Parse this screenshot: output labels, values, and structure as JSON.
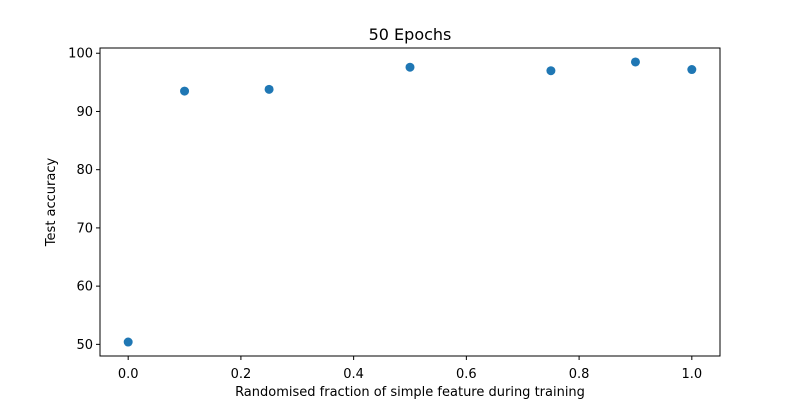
{
  "chart_data": {
    "type": "scatter",
    "title": "50 Epochs",
    "xlabel": "Randomised fraction of simple feature during training",
    "ylabel": "Test accuracy",
    "xlim": [
      -0.05,
      1.05
    ],
    "ylim": [
      48.0,
      100.9
    ],
    "xticks": [
      0.0,
      0.2,
      0.4,
      0.6,
      0.8,
      1.0
    ],
    "xtick_labels": [
      "0.0",
      "0.2",
      "0.4",
      "0.6",
      "0.8",
      "1.0"
    ],
    "yticks": [
      50,
      60,
      70,
      80,
      90,
      100
    ],
    "ytick_labels": [
      "50",
      "60",
      "70",
      "80",
      "90",
      "100"
    ],
    "grid": false,
    "legend": "none",
    "series": [
      {
        "color": "#1f77b4",
        "x": [
          0.0,
          0.1,
          0.25,
          0.5,
          0.75,
          0.9,
          1.0
        ],
        "y": [
          50.4,
          93.5,
          93.8,
          97.6,
          97.0,
          98.5,
          97.2
        ]
      }
    ]
  }
}
